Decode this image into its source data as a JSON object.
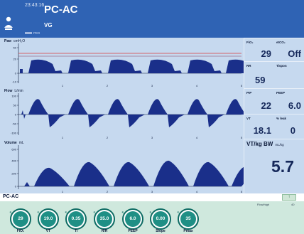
{
  "header": {
    "time": "23:43:16",
    "mode": "PC-AC",
    "sub": "VG",
    "patient_tag": "PED"
  },
  "waveforms": [
    {
      "id": "paw",
      "label": "Paw",
      "unit": "cmH₂O",
      "y_ticks": [
        "50",
        "20",
        "0",
        "-10"
      ]
    },
    {
      "id": "flow",
      "label": "Flow",
      "unit": "L/min",
      "y_ticks": [
        "100",
        "50",
        "0",
        "-50",
        "-100"
      ]
    },
    {
      "id": "volume",
      "label": "Volume",
      "unit": "mL",
      "y_ticks": [
        "600",
        "400",
        "200",
        "0"
      ]
    }
  ],
  "time_axis": [
    "1",
    "2",
    "3",
    "4",
    "5"
  ],
  "params": {
    "fio2": {
      "label": "FiO₂",
      "value": "29"
    },
    "etco2": {
      "label": "etCO₂",
      "value": "Off"
    },
    "rr": {
      "label": "RR",
      "value": "59"
    },
    "tispon": {
      "label": "Tispon",
      "value": ""
    },
    "pip": {
      "label": "PIP",
      "value": "22"
    },
    "peep": {
      "label": "PEEP",
      "value": "6.0"
    },
    "vt": {
      "label": "VT",
      "value": "18.1"
    },
    "leak": {
      "label": "% leak",
      "value": "0"
    },
    "vtbw": {
      "label": "VT/kg BW",
      "unit": "mL/kg",
      "value": "5.7"
    }
  },
  "mode_bar": {
    "label": "PC-AC",
    "up_icon": "↑"
  },
  "settings": {
    "flow_label": "Flow/high",
    "flow_value": "40",
    "knobs": [
      {
        "value": "29",
        "label": "FiO₂"
      },
      {
        "value": "19.0",
        "label": "VT"
      },
      {
        "value": "0.35",
        "label": "Ti"
      },
      {
        "value": "35.0",
        "label": "R/R"
      },
      {
        "value": "6.0",
        "label": "PEEP"
      },
      {
        "value": "0.00",
        "label": "Slope"
      },
      {
        "value": "35",
        "label": "Pmax"
      }
    ]
  },
  "colors": {
    "header": "#2f63b4",
    "panel": "#c6d9ef",
    "wave_fill": "#1a2f8a",
    "alarm_line": "#d83b3b",
    "knob": "#1f8f85",
    "settings_bg": "#cfe8dd"
  }
}
